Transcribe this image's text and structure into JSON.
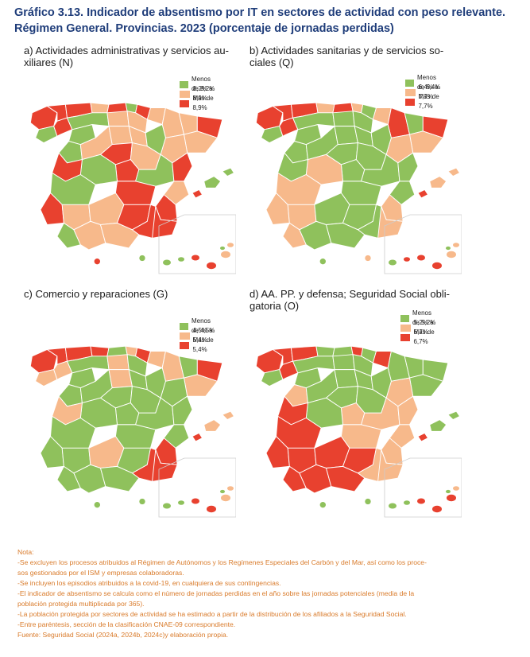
{
  "title_line1": "Gráfico 3.13. Indicador de absentismo por IT en sectores de actividad con peso relevante.",
  "title_line2": "Régimen General. Provincias. 2023 (porcentaje de jornadas perdidas)",
  "colors": {
    "low": "#8fc15c",
    "mid": "#f7b98b",
    "high": "#e8412f",
    "border": "#ffffff",
    "islands_box": "#cccccc"
  },
  "panels": [
    {
      "title_line1": "a) Actividades administrativas y servicios au-",
      "title_line2": "xiliares (N)",
      "legend": [
        "Menos de 8,2%",
        "8,2% a 8,9%",
        "Más de 8,9%"
      ]
    },
    {
      "title_line1": "b) Actividades sanitarias y de servicios so-",
      "title_line2": "ciales (Q)",
      "legend": [
        "Menos de 6,4%",
        "6,4% a 7,7%",
        "Más de 7,7%"
      ]
    },
    {
      "title_line1": "c) Comercio y reparaciones (G)",
      "title_line2": "",
      "legend": [
        "Menos de 4,5%",
        "4,5% a 5,4%",
        "Más de 5,4%"
      ]
    },
    {
      "title_line1": "d) AA. PP. y defensa; Seguridad Social obli-",
      "title_line2": "gatoria (O)",
      "legend": [
        "Menos de 5,2%",
        "5,2% a 6,7%",
        "Más de 6,7%"
      ]
    }
  ],
  "notes": [
    "Nota:",
    "-Se excluyen los procesos atribuidos al Régimen de Autónomos y los Regímenes Especiales del Carbón y del Mar, así como los proce-",
    "sos gestionados por el ISM y empresas colaboradoras.",
    "-Se incluyen los episodios atribuidos a la covid-19, en cualquiera de sus contingencias.",
    "-El indicador de absentismo se calcula como el número de jornadas perdidas en el año sobre las jornadas potenciales (media de la",
    "población protegida multiplicada por 365).",
    "-La población protegida por sectores de actividad se ha estimado a partir de la distribución de los afiliados a la Seguridad Social.",
    "-Entre paréntesis, sección de la clasificación CNAE-09 correspondiente.",
    "Fuente: Seguridad Social (2024a, 2024b, 2024c)y elaboración propia."
  ]
}
